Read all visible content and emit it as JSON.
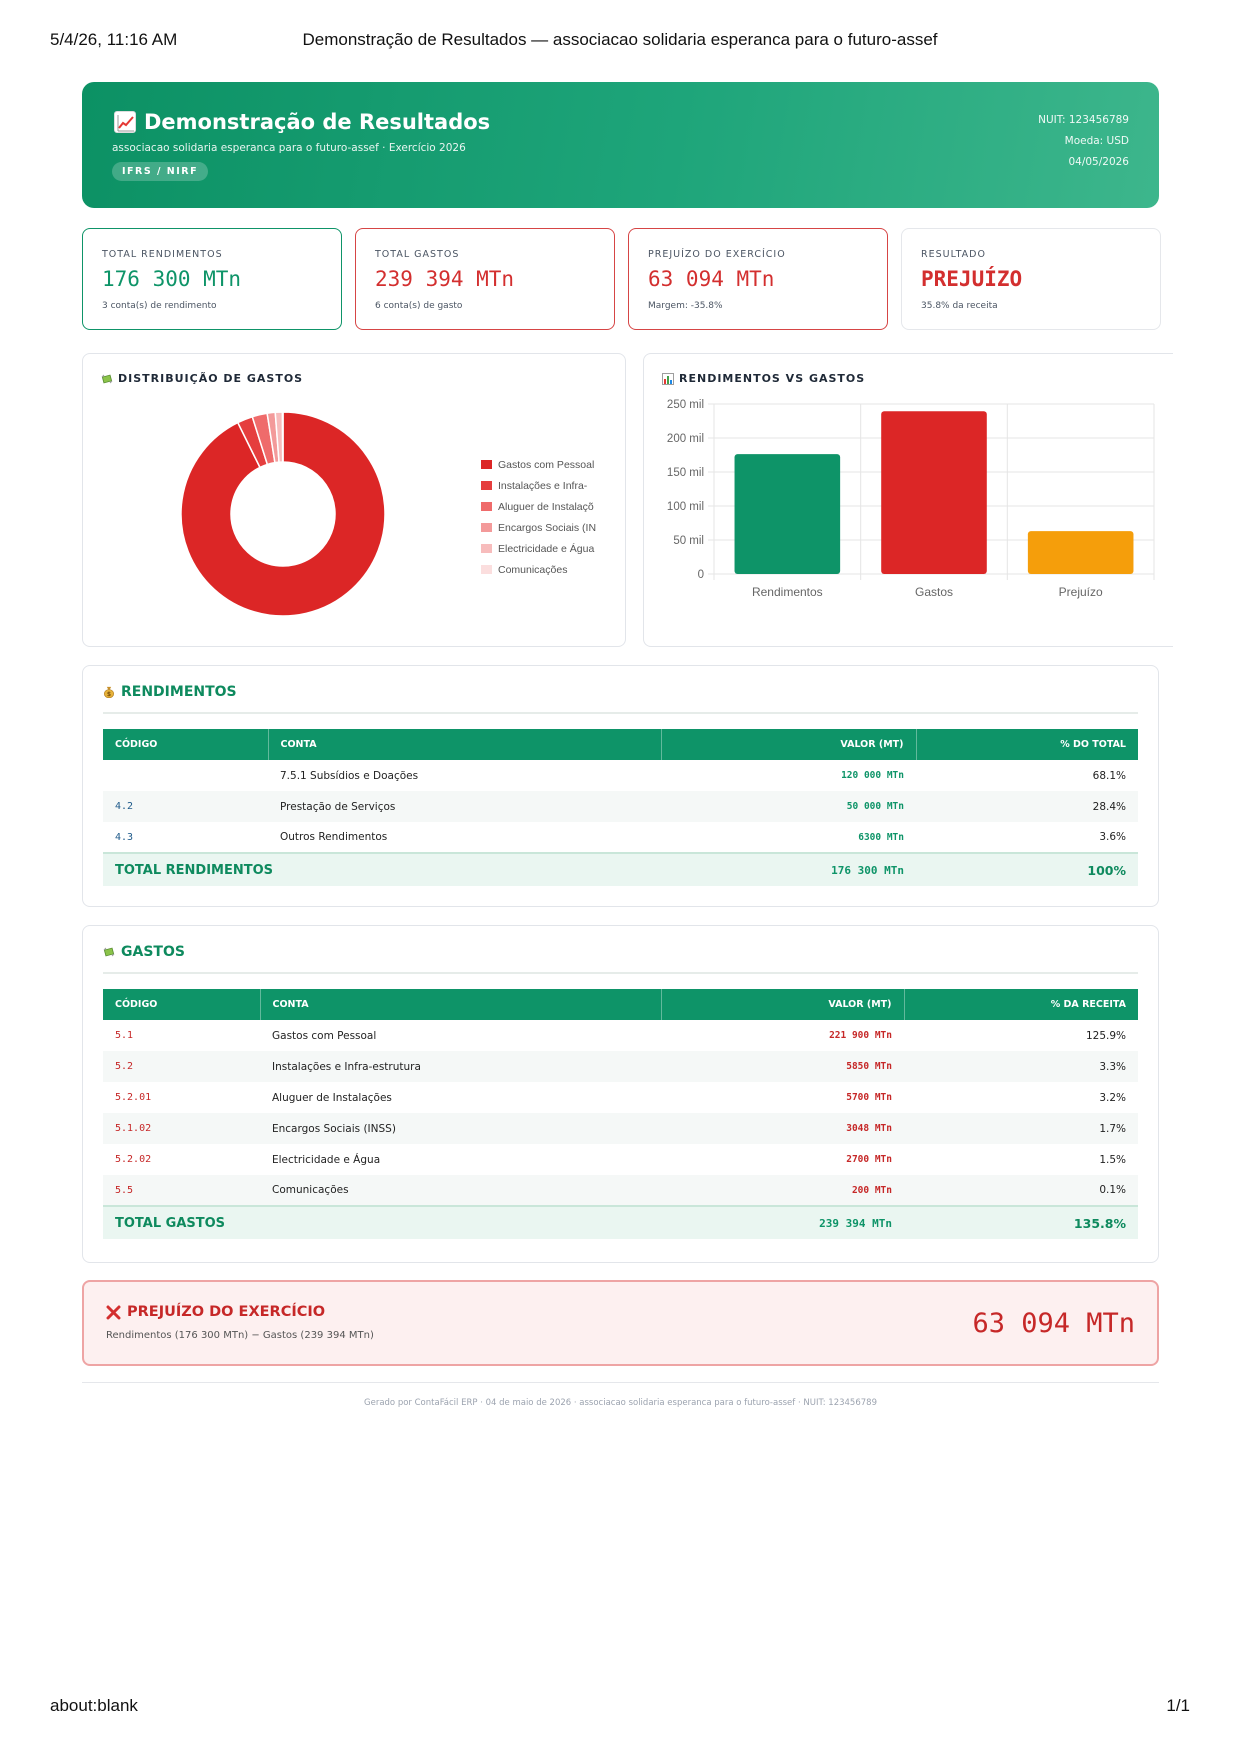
{
  "browser": {
    "datetime": "5/4/26, 11:16 AM",
    "doc_title": "Demonstração de Resultados — associacao solidaria esperanca para o futuro-assef",
    "url": "about:blank",
    "page_count": "1/1"
  },
  "header": {
    "title": "Demonstração de Resultados",
    "subtitle": "associacao solidaria esperanca para o futuro-assef · Exercício 2026",
    "badge": "IFRS / NIRF",
    "nuit": "NUIT: 123456789",
    "currency": "Moeda: USD",
    "date": "04/05/2026"
  },
  "kpis": [
    {
      "label": "TOTAL RENDIMENTOS",
      "value": "176 300 MTn",
      "note": "3 conta(s) de rendimento"
    },
    {
      "label": "TOTAL GASTOS",
      "value": "239 394 MTn",
      "note": "6 conta(s) de gasto"
    },
    {
      "label": "PREJUÍZO DO EXERCÍCIO",
      "value": "63 094 MTn",
      "note": "Margem: -35.8%"
    },
    {
      "label": "RESULTADO",
      "value": "PREJUÍZO",
      "note": "35.8% da receita"
    }
  ],
  "distribution": {
    "title": "DISTRIBUIÇÃO DE GASTOS",
    "legend": [
      "Gastos com Pessoal",
      "Instalações e Infra-",
      "Aluguer de Instalaçõ",
      "Encargos Sociais (IN",
      "Electricidade e Água",
      "Comunicações"
    ]
  },
  "bars": {
    "title": "RENDIMENTOS VS GASTOS"
  },
  "chart_data": [
    {
      "type": "pie",
      "title": "DISTRIBUIÇÃO DE GASTOS",
      "categories": [
        "Gastos com Pessoal",
        "Instalações e Infra-estrutura",
        "Aluguer de Instalações",
        "Encargos Sociais (INSS)",
        "Electricidade e Água",
        "Comunicações"
      ],
      "values": [
        221900,
        5850,
        5700,
        3048,
        2700,
        200
      ],
      "colors": [
        "#dc2626",
        "#e53e3e",
        "#ef6b6b",
        "#f39a9a",
        "#f7bcbc",
        "#fbdede"
      ],
      "legend": "right"
    },
    {
      "type": "bar",
      "title": "RENDIMENTOS VS GASTOS",
      "categories": [
        "Rendimentos",
        "Gastos",
        "Prejuízo"
      ],
      "values": [
        176300,
        239394,
        63094
      ],
      "colors": [
        "#0e9468",
        "#dc2626",
        "#f59e0b"
      ],
      "ylim": [
        0,
        250000
      ],
      "yticks": [
        0,
        50000,
        100000,
        150000,
        200000,
        250000
      ],
      "ytick_labels": [
        "0",
        "50 mil",
        "100 mil",
        "150 mil",
        "200 mil",
        "250 mil"
      ],
      "grid": true
    }
  ],
  "income": {
    "title": "RENDIMENTOS",
    "headers": [
      "CÓDIGO",
      "CONTA",
      "VALOR (MT)",
      "% DO TOTAL"
    ],
    "rows": [
      {
        "code": "",
        "account": "7.5.1 Subsídios e Doações",
        "value": "120 000 MTn",
        "pct": "68.1%"
      },
      {
        "code": "4.2",
        "account": "Prestação de Serviços",
        "value": "50 000 MTn",
        "pct": "28.4%"
      },
      {
        "code": "4.3",
        "account": "Outros Rendimentos",
        "value": "6300 MTn",
        "pct": "3.6%"
      }
    ],
    "total_label": "TOTAL RENDIMENTOS",
    "total_value": "176 300 MTn",
    "total_pct": "100%"
  },
  "expenses": {
    "title": "GASTOS",
    "headers": [
      "CÓDIGO",
      "CONTA",
      "VALOR (MT)",
      "% DA RECEITA"
    ],
    "rows": [
      {
        "code": "5.1",
        "account": "Gastos com Pessoal",
        "value": "221 900 MTn",
        "pct": "125.9%"
      },
      {
        "code": "5.2",
        "account": "Instalações e Infra-estrutura",
        "value": "5850 MTn",
        "pct": "3.3%"
      },
      {
        "code": "5.2.01",
        "account": "Aluguer de Instalações",
        "value": "5700 MTn",
        "pct": "3.2%"
      },
      {
        "code": "5.1.02",
        "account": "Encargos Sociais (INSS)",
        "value": "3048 MTn",
        "pct": "1.7%"
      },
      {
        "code": "5.2.02",
        "account": "Electricidade e Água",
        "value": "2700 MTn",
        "pct": "1.5%"
      },
      {
        "code": "5.5",
        "account": "Comunicações",
        "value": "200 MTn",
        "pct": "0.1%"
      }
    ],
    "total_label": "TOTAL GASTOS",
    "total_value": "239 394 MTn",
    "total_pct": "135.8%"
  },
  "result": {
    "title": "PREJUÍZO DO EXERCÍCIO",
    "detail": "Rendimentos (176 300 MTn) − Gastos (239 394 MTn)",
    "value": "63 094 MTn"
  },
  "footer": {
    "text": "Gerado por ContaFácil ERP · 04 de maio de 2026 · associacao solidaria esperanca para o futuro-assef · NUIT: 123456789"
  }
}
